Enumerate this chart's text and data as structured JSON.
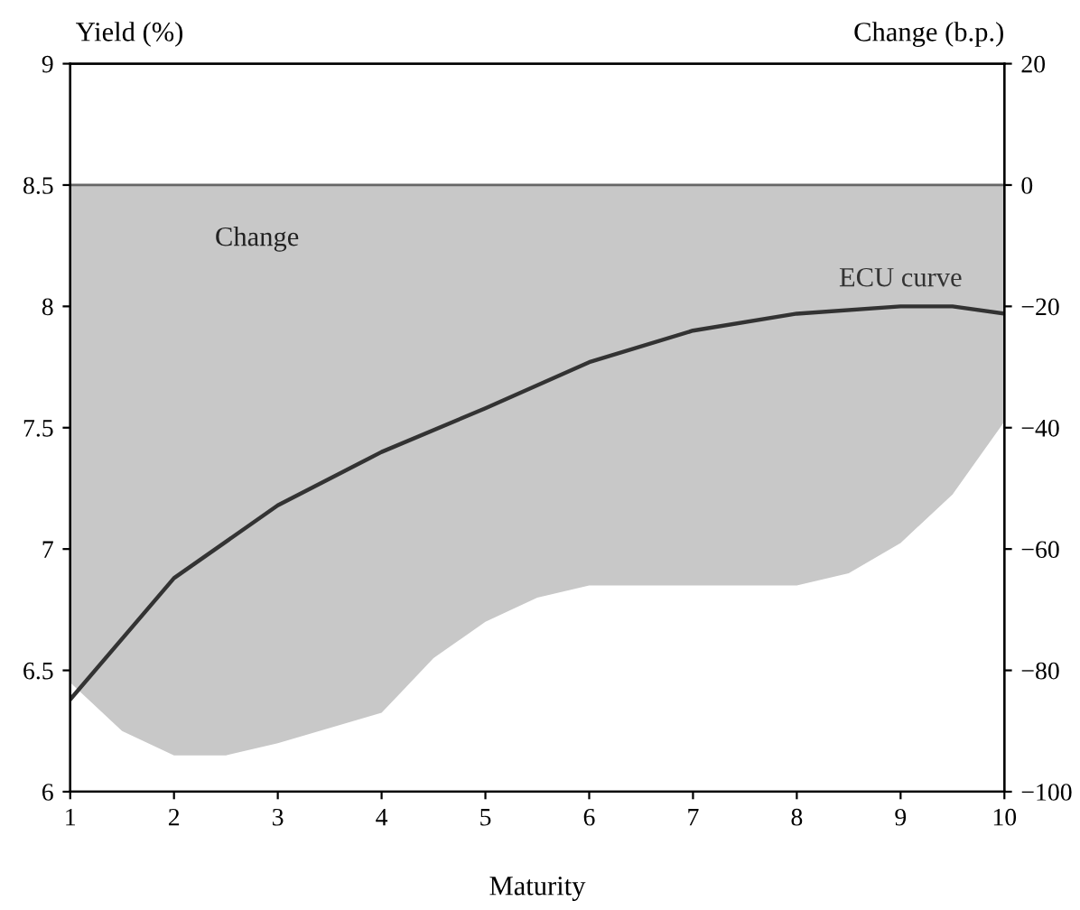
{
  "chart_data": {
    "type": "line",
    "xlabel": "Maturity",
    "ylabel": "Yield (%)",
    "y2label": "Change (b.p.)",
    "xlim": [
      1,
      10
    ],
    "xticks": [
      1,
      2,
      3,
      4,
      5,
      6,
      7,
      8,
      9,
      10
    ],
    "ylim": [
      6,
      9
    ],
    "yticks": [
      6,
      6.5,
      7,
      7.5,
      8,
      8.5,
      9
    ],
    "y2lim": [
      -100,
      20
    ],
    "y2ticks": [
      -100,
      -80,
      -60,
      -40,
      -20,
      0,
      20
    ],
    "series": [
      {
        "name": "Change",
        "type": "area",
        "axis": "y2",
        "color": "#c8c8c8",
        "x": [
          1,
          1.5,
          2,
          2.5,
          3,
          4,
          4.5,
          5,
          5.5,
          6,
          7,
          8,
          8.5,
          9,
          9.5,
          10
        ],
        "values": [
          -82,
          -90,
          -94,
          -94,
          -92,
          -87,
          -78,
          -72,
          -68,
          -66,
          -66,
          -66,
          -64,
          -59,
          -51,
          -39
        ]
      },
      {
        "name": "ECU curve",
        "color": "#333333",
        "x": [
          1,
          2,
          3,
          4,
          5,
          6,
          7,
          8,
          9,
          9.5,
          10
        ],
        "values": [
          6.38,
          6.88,
          7.18,
          7.4,
          7.58,
          7.77,
          7.9,
          7.97,
          8.0,
          8.0,
          7.97
        ]
      }
    ],
    "ref_lines": [
      {
        "axis": "y2",
        "value": 0,
        "color": "#666666"
      }
    ],
    "grid": false,
    "legend": false
  }
}
